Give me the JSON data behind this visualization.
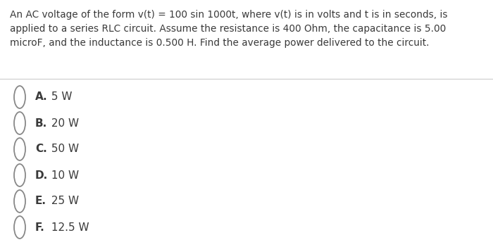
{
  "question": "An AC voltage of the form v(t) = 100 sin 1000t, where v(t) is in volts and t is in seconds, is\napplied to a series RLC circuit. Assume the resistance is 400 Ohm, the capacitance is 5.00\nmicroF, and the inductance is 0.500 H. Find the average power delivered to the circuit.",
  "choices": [
    [
      "A.",
      " 5 W"
    ],
    [
      "B.",
      " 20 W"
    ],
    [
      "C.",
      " 50 W"
    ],
    [
      "D.",
      " 10 W"
    ],
    [
      "E.",
      " 25 W"
    ],
    [
      "F.",
      " 12.5 W"
    ]
  ],
  "bg_color": "#ffffff",
  "text_color": "#3a3a3a",
  "choice_color": "#3a3a3a",
  "divider_color": "#d0d0d0",
  "question_fontsize": 9.8,
  "choice_fontsize": 11.0,
  "circle_color": "#888888",
  "fig_width": 7.0,
  "fig_height": 3.51
}
